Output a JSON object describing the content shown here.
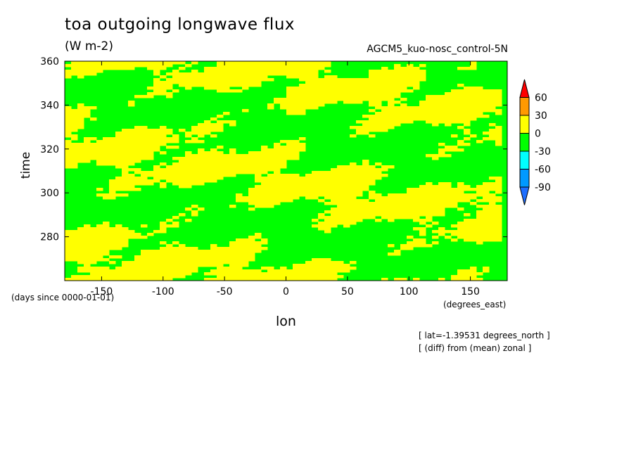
{
  "chart_data": {
    "type": "heatmap",
    "title": "toa outgoing longwave flux",
    "units": "(W m-2)",
    "dataset": "AGCM5_kuo-nosc_control-5N",
    "xlabel": "lon",
    "ylabel": "time",
    "x_units": "(degrees_east)",
    "y_units": "(days since 0000-01-01)",
    "xlim": [
      -180,
      180
    ],
    "ylim": [
      260,
      360
    ],
    "x_ticks": [
      -150,
      -100,
      -50,
      0,
      50,
      100,
      150
    ],
    "x_tick_labels": [
      "-150",
      "-100",
      "-50",
      "0",
      "50",
      "100",
      "150"
    ],
    "y_ticks": [
      280,
      300,
      320,
      340,
      360
    ],
    "y_tick_labels": [
      "280",
      "300",
      "320",
      "340",
      "360"
    ],
    "notes": [
      "[ lat=-1.39531 degrees_north ]",
      "[ (diff) from (mean) zonal ]"
    ],
    "colorbar": {
      "levels": [
        -90,
        -60,
        -30,
        0,
        30,
        60
      ],
      "labels": [
        "60",
        "30",
        "0",
        "-30",
        "-60",
        "-90"
      ],
      "colors": [
        "#1e6eff",
        "#0099ff",
        "#00ffff",
        "#00ff00",
        "#ffff00",
        "#ff9900",
        "#ff0000"
      ]
    },
    "dominant_classes": [
      "0 to 30 (#ffff00)",
      "-30 to 0 (#00ff00)"
    ]
  }
}
